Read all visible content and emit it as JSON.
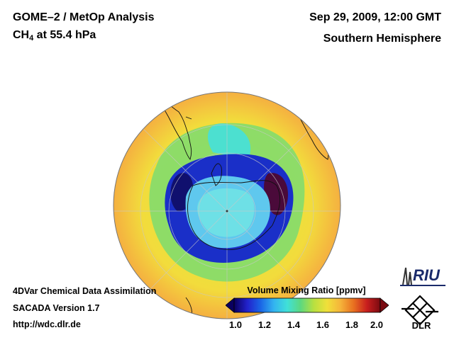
{
  "header": {
    "instrument": "GOME–2 / MetOp Analysis",
    "species_main": "CH",
    "species_sub": "4",
    "species_rest": " at 55.4 hPa",
    "datetime": "Sep 29, 2009, 12:00 GMT",
    "region": "Southern Hemisphere"
  },
  "footer": {
    "line1": "4DVar Chemical Data Assimilation",
    "line2": "SACADA Version 1.7",
    "line3": "http://wdc.dlr.de"
  },
  "colorbar": {
    "title": "Volume Mixing Ratio [ppmv]",
    "ticks": [
      "1.0",
      "1.2",
      "1.4",
      "1.6",
      "1.8",
      "2.0"
    ],
    "colors": [
      "#0a0060",
      "#2222cc",
      "#1a66e6",
      "#33b4f0",
      "#40e0d8",
      "#5cd880",
      "#b8e040",
      "#f0e03a",
      "#f5b43a",
      "#e87020",
      "#c81e1e",
      "#7a0a10"
    ]
  },
  "logos": {
    "riu": "RIU",
    "dlr": "DLR"
  },
  "map": {
    "projection": "orthographic south polar",
    "ocean_high_color": "#f2dc3c",
    "outer_color": "#f5b040",
    "vortex_edge_color": "#1a2fc8",
    "vortex_core_color": "#5fd8e8"
  }
}
